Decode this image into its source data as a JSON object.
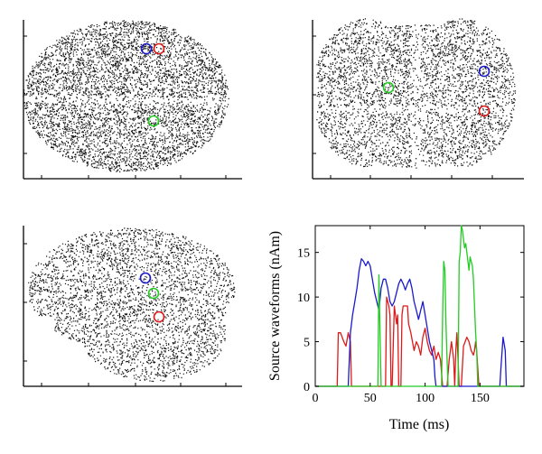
{
  "figure": {
    "panels": [
      {
        "view": "top",
        "markers": [
          {
            "color": "#1a1acc"
          },
          {
            "color": "#dd1a1a"
          },
          {
            "color": "#22cc22"
          }
        ]
      },
      {
        "view": "front",
        "markers": [
          {
            "color": "#22cc22"
          },
          {
            "color": "#1a1acc"
          },
          {
            "color": "#dd1a1a"
          }
        ]
      },
      {
        "view": "side",
        "markers": [
          {
            "color": "#1a1acc"
          },
          {
            "color": "#22cc22"
          },
          {
            "color": "#dd1a1a"
          }
        ]
      }
    ]
  },
  "chart_data": {
    "type": "line",
    "title": "",
    "xlabel": "Time (ms)",
    "ylabel": "Source waveforms (nAm)",
    "xlim": [
      0,
      190
    ],
    "ylim": [
      0,
      18
    ],
    "xticks": [
      0,
      50,
      100,
      150
    ],
    "yticks": [
      0,
      5,
      10,
      15
    ],
    "grid": false,
    "series": [
      {
        "color": "#dd1a1a",
        "x": [
          0,
          20,
          21,
          23,
          26,
          28,
          30,
          32,
          33,
          34,
          35,
          64,
          65,
          67,
          68,
          69,
          70,
          72,
          73,
          74,
          75,
          76,
          77,
          78,
          79,
          80,
          84,
          85,
          87,
          90,
          92,
          94,
          96,
          98,
          100,
          102,
          104,
          106,
          108,
          110,
          112,
          114,
          116,
          118,
          120,
          122,
          124,
          126,
          127,
          128,
          129,
          130,
          131,
          133,
          135,
          138,
          140,
          142,
          144,
          145,
          146,
          147,
          148,
          149,
          150,
          190
        ],
        "y": [
          0,
          0,
          6,
          6,
          5,
          4.5,
          6,
          5,
          0,
          0,
          0,
          0,
          10,
          9,
          8,
          0,
          0,
          9,
          8,
          7,
          8,
          0,
          0,
          0,
          8,
          9,
          9,
          7,
          6,
          4,
          5,
          4.5,
          3.5,
          5.5,
          6.5,
          5,
          4,
          3.5,
          4.5,
          3,
          3.8,
          3,
          0,
          0,
          0,
          3,
          5,
          3,
          0,
          4,
          6,
          3,
          0,
          0,
          4.5,
          5.5,
          5,
          4,
          3.5,
          4,
          5,
          4,
          2,
          0,
          0,
          0
        ]
      },
      {
        "color": "#1a1acc",
        "x": [
          0,
          30,
          31,
          32,
          34,
          36,
          38,
          40,
          42,
          44,
          46,
          48,
          50,
          52,
          54,
          56,
          58,
          60,
          62,
          64,
          66,
          68,
          70,
          72,
          74,
          76,
          78,
          80,
          82,
          84,
          86,
          88,
          90,
          92,
          94,
          96,
          98,
          100,
          102,
          104,
          106,
          108,
          109,
          110,
          168,
          169,
          171,
          173,
          174,
          175,
          190
        ],
        "y": [
          0,
          0,
          3,
          6,
          8,
          9.5,
          11,
          13,
          14.3,
          14,
          13.5,
          14,
          13.5,
          12,
          10.5,
          9.5,
          8.5,
          11,
          12,
          12,
          11,
          9.5,
          9,
          9.5,
          10.5,
          11.5,
          12,
          11.5,
          10.8,
          11.5,
          12,
          11,
          9.5,
          8.5,
          7.5,
          8.5,
          9.5,
          8,
          6.5,
          5,
          4,
          3,
          1,
          0,
          0,
          2,
          5.5,
          4,
          0,
          0,
          0
        ]
      },
      {
        "color": "#22cc22",
        "x": [
          0,
          57,
          58,
          59,
          60,
          61,
          62,
          63,
          64,
          65,
          66,
          67,
          68,
          69,
          115,
          116,
          117,
          118,
          119,
          120,
          121,
          122,
          123,
          130,
          131,
          132,
          133,
          134,
          135,
          136,
          137,
          138,
          139,
          140,
          141,
          142,
          143,
          144,
          145,
          146,
          147,
          148,
          149,
          150,
          190
        ],
        "y": [
          0,
          0,
          12.5,
          6,
          0,
          0,
          0,
          0,
          0,
          0,
          0,
          0,
          0,
          0,
          0,
          8,
          14,
          13,
          7,
          3,
          0,
          0,
          0,
          0,
          14,
          15,
          18,
          17.5,
          16.5,
          15.5,
          16,
          15,
          14,
          13,
          14.5,
          14,
          13.5,
          12,
          9,
          6,
          4,
          0,
          0,
          0,
          0
        ]
      }
    ]
  }
}
